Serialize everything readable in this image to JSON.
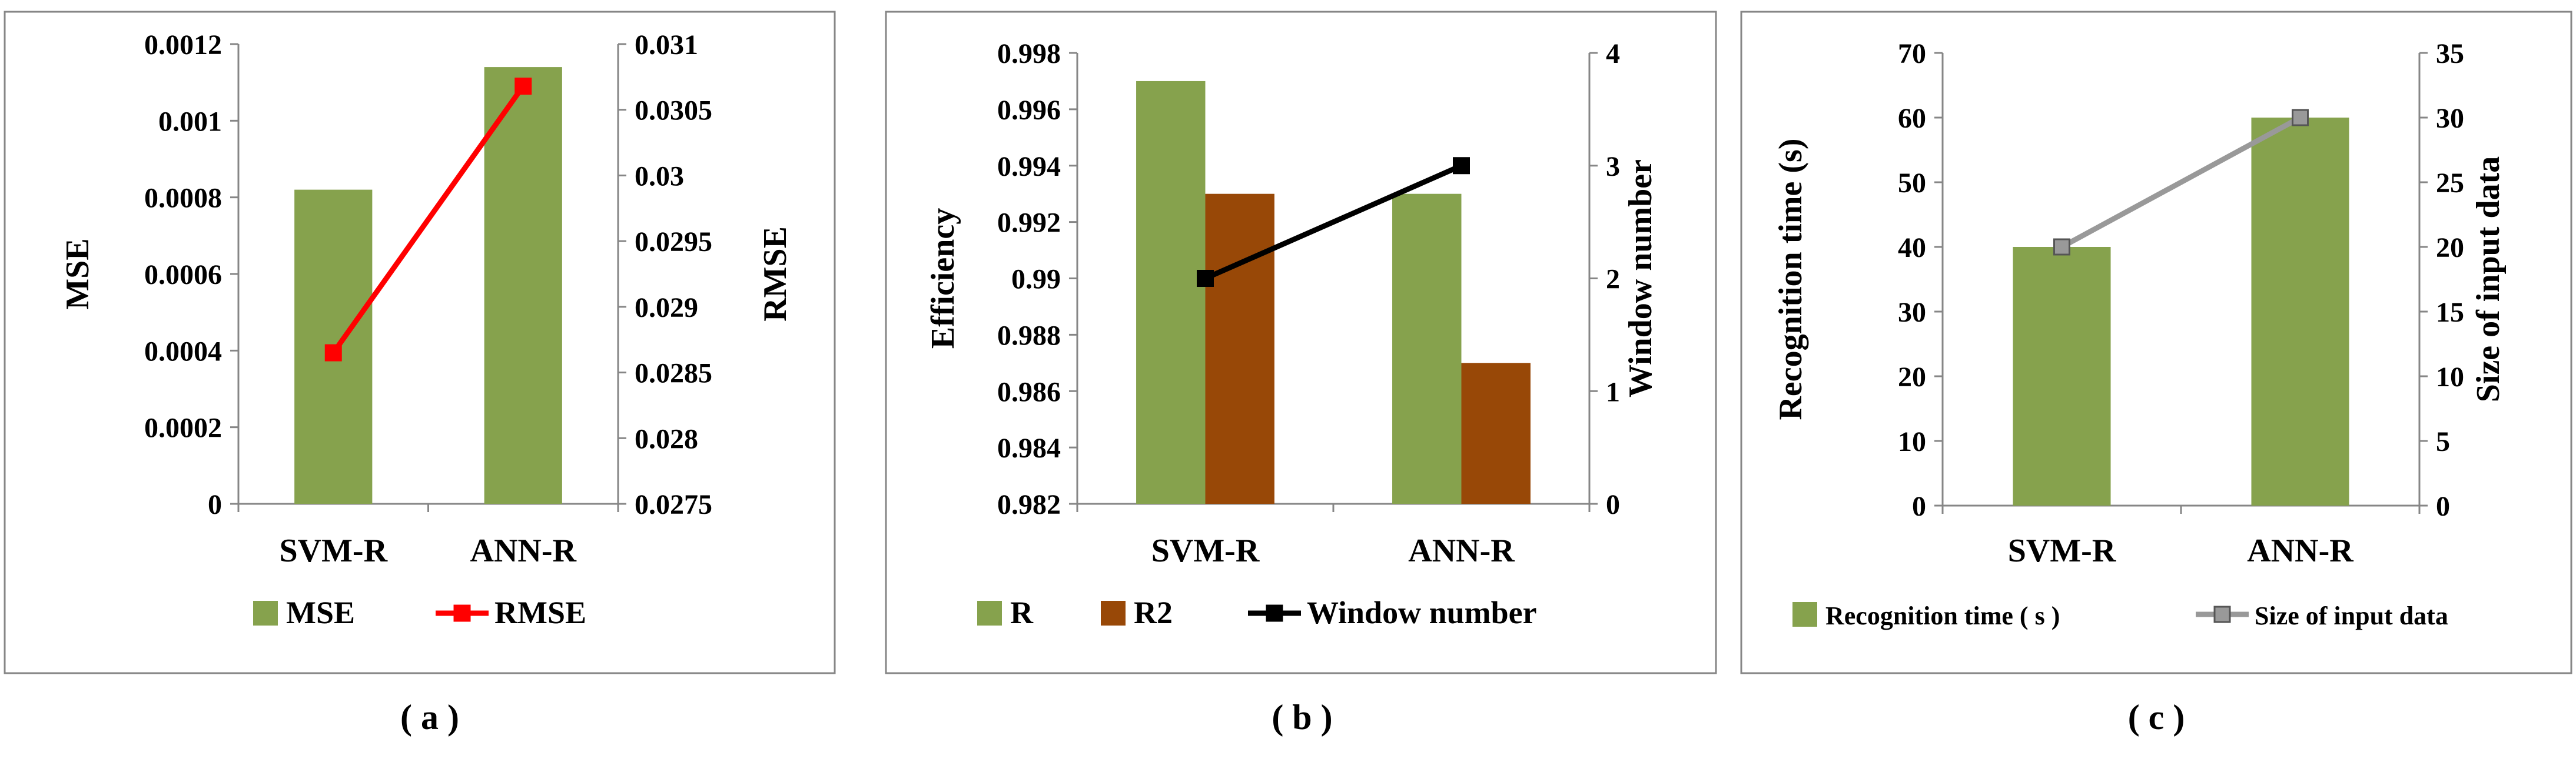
{
  "colors": {
    "green": "#86A24D",
    "brown": "#984807",
    "red": "#FF0000",
    "black": "#000000",
    "gray": "#999999",
    "frame": "#868686"
  },
  "chart_data": [
    {
      "type": "bar+line",
      "caption": "( a )",
      "categories": [
        "SVM-R",
        "ANN-R"
      ],
      "series": [
        {
          "name": "MSE",
          "type": "bar",
          "axis": "left",
          "values": [
            0.00082,
            0.00114
          ]
        },
        {
          "name": "RMSE",
          "type": "line",
          "axis": "right",
          "values": [
            0.02865,
            0.03068
          ]
        }
      ],
      "ylabel": "MSE",
      "y2label": "RMSE",
      "ylim": [
        0,
        0.0012
      ],
      "y2lim": [
        0.0275,
        0.031
      ],
      "yticks": [
        "0",
        "0.0002",
        "0.0004",
        "0.0006",
        "0.0008",
        "0.001",
        "0.0012"
      ],
      "y2ticks": [
        "0.0275",
        "0.028",
        "0.0285",
        "0.029",
        "0.0295",
        "0.03",
        "0.0305",
        "0.031"
      ],
      "legend": "bottom"
    },
    {
      "type": "bar+line",
      "caption": "( b )",
      "categories": [
        "SVM-R",
        "ANN-R"
      ],
      "series": [
        {
          "name": "R",
          "type": "bar",
          "axis": "left",
          "values": [
            0.997,
            0.993
          ]
        },
        {
          "name": "R2",
          "type": "bar",
          "axis": "left",
          "values": [
            0.993,
            0.987
          ]
        },
        {
          "name": "Window number",
          "type": "line",
          "axis": "right",
          "values": [
            2,
            3
          ]
        }
      ],
      "ylabel": "Efficiency",
      "y2label": "Window number",
      "ylim": [
        0.982,
        0.998
      ],
      "y2lim": [
        0,
        4
      ],
      "yticks": [
        "0.982",
        "0.984",
        "0.986",
        "0.988",
        "0.99",
        "0.992",
        "0.994",
        "0.996",
        "0.998"
      ],
      "y2ticks": [
        "0",
        "1",
        "2",
        "3",
        "4"
      ],
      "legend": "bottom"
    },
    {
      "type": "bar+line",
      "caption": "( c )",
      "categories": [
        "SVM-R",
        "ANN-R"
      ],
      "series": [
        {
          "name": "Recognition time ( s )",
          "type": "bar",
          "axis": "left",
          "values": [
            40,
            60
          ]
        },
        {
          "name": "Size of input data",
          "type": "line",
          "axis": "right",
          "values": [
            20,
            30
          ]
        }
      ],
      "ylabel": "Recognition time (s)",
      "y2label": "Size of input  data",
      "ylim": [
        0,
        70
      ],
      "y2lim": [
        0,
        35
      ],
      "yticks": [
        "0",
        "10",
        "20",
        "30",
        "40",
        "50",
        "60",
        "70"
      ],
      "y2ticks": [
        "0",
        "5",
        "10",
        "15",
        "20",
        "25",
        "30",
        "35"
      ],
      "legend": "bottom"
    }
  ]
}
